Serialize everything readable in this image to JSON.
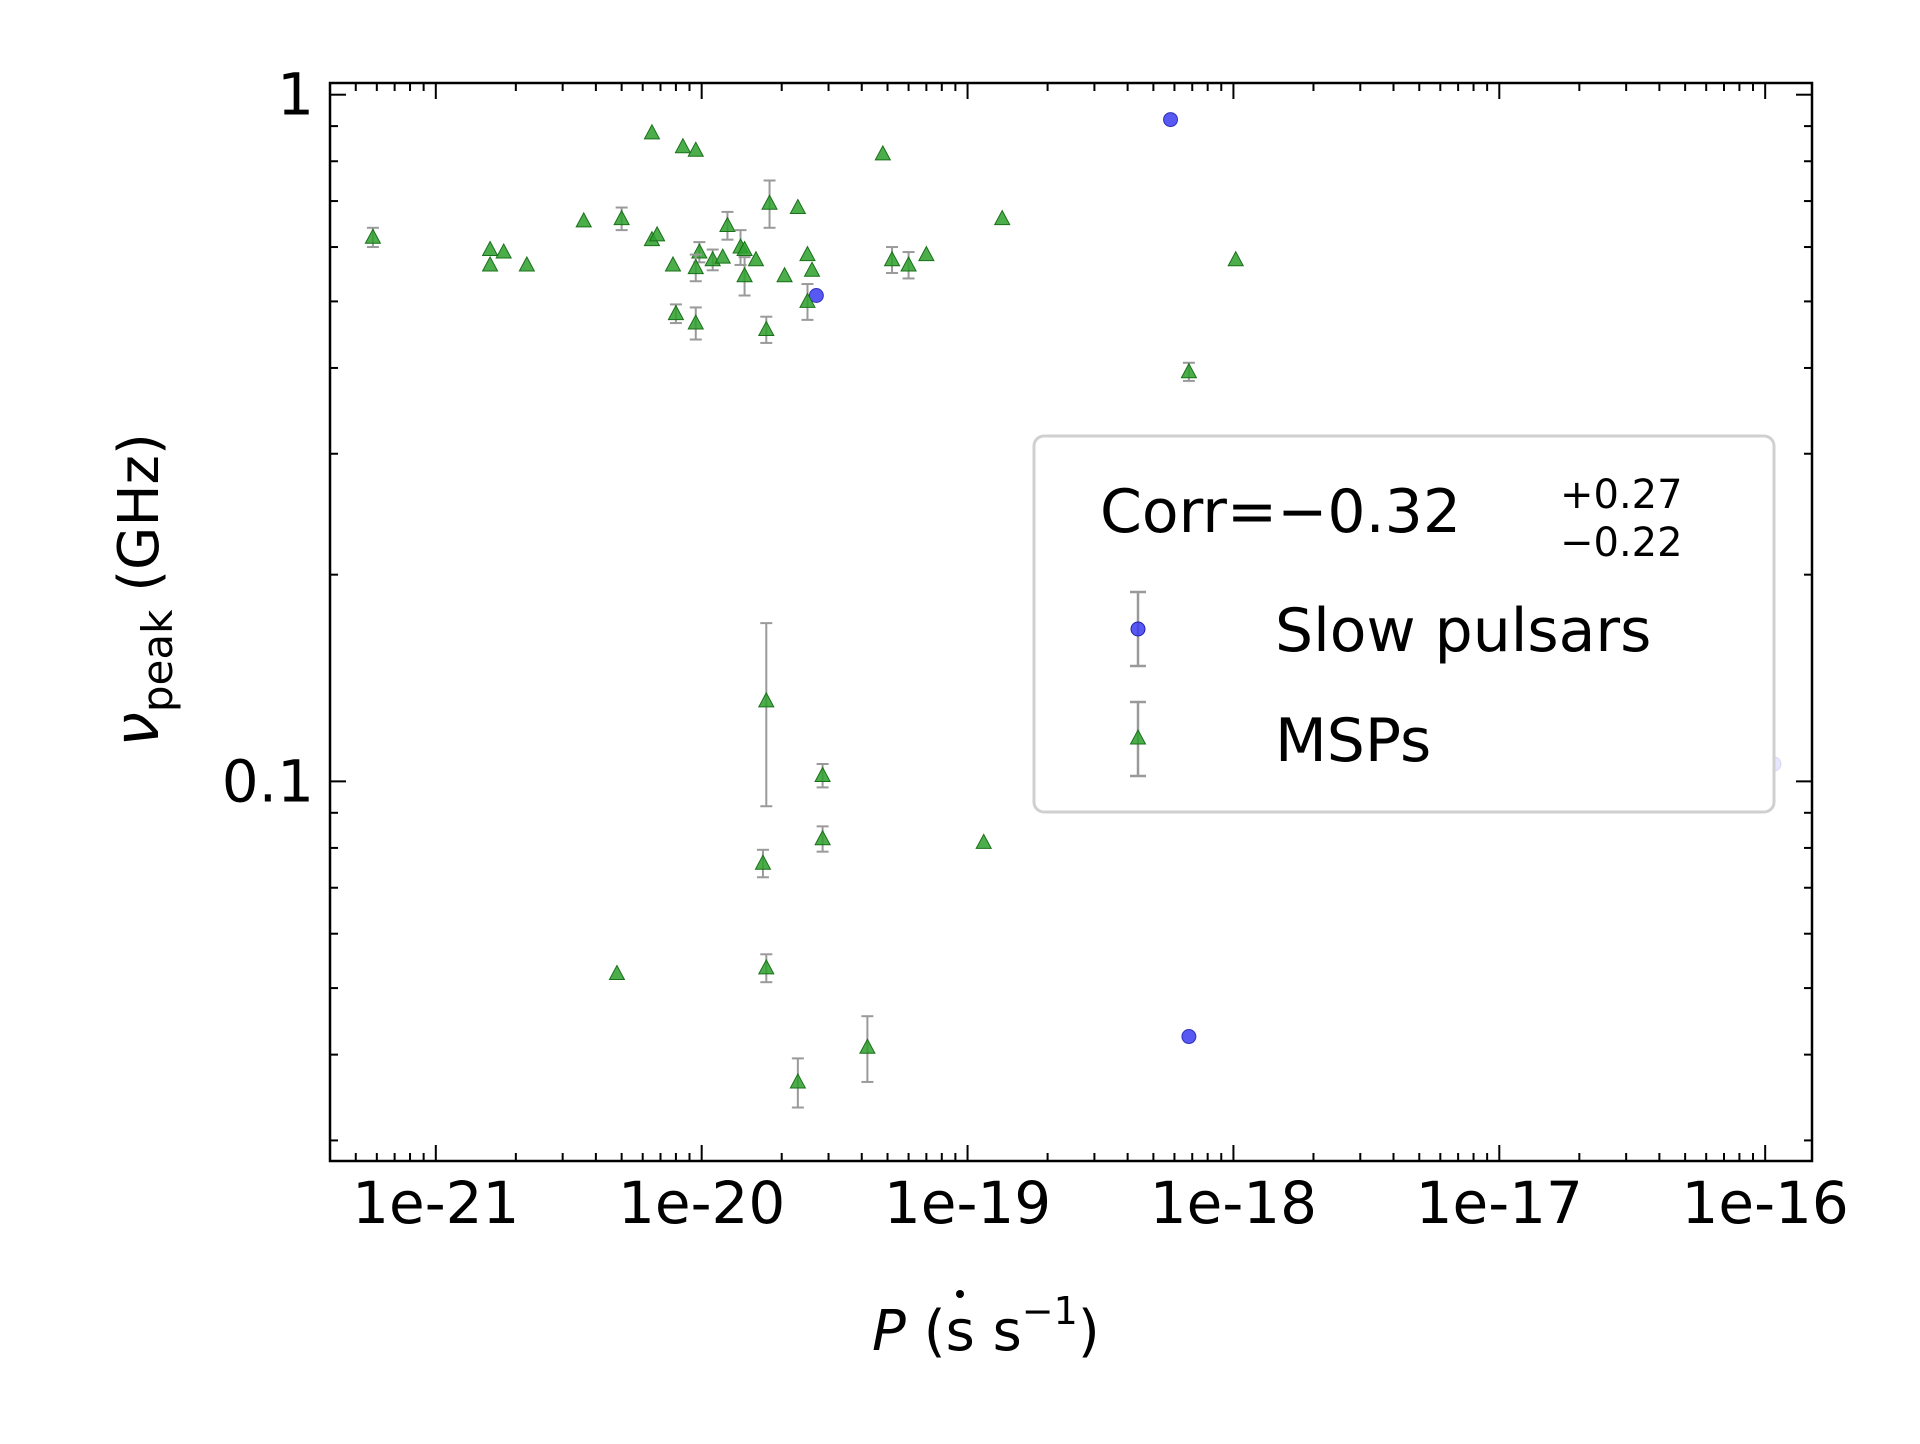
{
  "chart_data": {
    "type": "scatter",
    "x_scale": "log",
    "y_scale": "log",
    "xlabel_base": "P",
    "xlabel_units": "(s s",
    "xlabel_exp": "−1",
    "xlabel_close": ")",
    "ylabel_symbol": "ν",
    "ylabel_sub": "peak",
    "ylabel_units": " (GHz)",
    "xlim": [
      4e-22,
      1.5e-16
    ],
    "ylim": [
      0.028,
      1.04
    ],
    "x_ticks": [
      {
        "value": 1e-21,
        "label": "1e-21"
      },
      {
        "value": 1e-20,
        "label": "1e-20"
      },
      {
        "value": 1e-19,
        "label": "1e-19"
      },
      {
        "value": 1e-18,
        "label": "1e-18"
      },
      {
        "value": 1e-17,
        "label": "1e-17"
      },
      {
        "value": 1e-16,
        "label": "1e-16"
      }
    ],
    "y_ticks": [
      {
        "value": 1,
        "label": "1"
      },
      {
        "value": 0.1,
        "label": "0.1"
      }
    ],
    "legend": {
      "position": "center-right",
      "corr_text": "Corr=−0.32",
      "corr_upper": "+0.27",
      "corr_lower": "−0.22",
      "entries": [
        "Slow pulsars",
        "MSPs"
      ]
    },
    "colors": {
      "slow": "#3b3bf0",
      "msp": "#2ca02c",
      "error": "#9a9a9a"
    },
    "series": [
      {
        "name": "Slow pulsars",
        "marker": "circle",
        "points": [
          {
            "x": 5.8e-19,
            "y": 0.92
          },
          {
            "x": 2.7e-20,
            "y": 0.51
          },
          {
            "x": 6.8e-19,
            "y": 0.0425
          },
          {
            "x": 1.08e-16,
            "y": 0.106,
            "faded": true
          }
        ]
      },
      {
        "name": "MSPs",
        "marker": "triangle",
        "points": [
          {
            "x": 6.5e-21,
            "y": 0.88
          },
          {
            "x": 8.5e-21,
            "y": 0.84
          },
          {
            "x": 9.5e-21,
            "y": 0.83
          },
          {
            "x": 4.8e-20,
            "y": 0.82
          },
          {
            "x": 1.8e-20,
            "y": 0.695,
            "err": 0.055
          },
          {
            "x": 2.3e-20,
            "y": 0.685
          },
          {
            "x": 3.6e-21,
            "y": 0.655
          },
          {
            "x": 5e-21,
            "y": 0.66,
            "err": 0.025
          },
          {
            "x": 1.25e-20,
            "y": 0.645,
            "err": 0.03
          },
          {
            "x": 1.35e-19,
            "y": 0.66
          },
          {
            "x": 5.8e-22,
            "y": 0.62,
            "err": 0.02
          },
          {
            "x": 6.5e-21,
            "y": 0.615
          },
          {
            "x": 6.8e-21,
            "y": 0.625
          },
          {
            "x": 1.4e-20,
            "y": 0.6,
            "err": 0.035
          },
          {
            "x": 1.45e-20,
            "y": 0.595
          },
          {
            "x": 1.6e-21,
            "y": 0.595
          },
          {
            "x": 1.8e-21,
            "y": 0.59
          },
          {
            "x": 1.6e-21,
            "y": 0.565
          },
          {
            "x": 2.2e-21,
            "y": 0.565
          },
          {
            "x": 7.8e-21,
            "y": 0.565
          },
          {
            "x": 9.8e-21,
            "y": 0.59,
            "err": 0.02
          },
          {
            "x": 9.5e-21,
            "y": 0.56,
            "err": 0.025
          },
          {
            "x": 1.1e-20,
            "y": 0.575,
            "err": 0.02
          },
          {
            "x": 1.2e-20,
            "y": 0.58
          },
          {
            "x": 1.6e-20,
            "y": 0.575
          },
          {
            "x": 1.45e-20,
            "y": 0.545,
            "err": 0.035
          },
          {
            "x": 2.05e-20,
            "y": 0.545
          },
          {
            "x": 2.5e-20,
            "y": 0.585
          },
          {
            "x": 2.6e-20,
            "y": 0.555
          },
          {
            "x": 5.2e-20,
            "y": 0.575,
            "err": 0.025
          },
          {
            "x": 6e-20,
            "y": 0.565,
            "err": 0.025
          },
          {
            "x": 7e-20,
            "y": 0.585
          },
          {
            "x": 1.02e-18,
            "y": 0.575
          },
          {
            "x": 2.5e-20,
            "y": 0.5,
            "err": 0.03
          },
          {
            "x": 8e-21,
            "y": 0.48,
            "err": 0.015
          },
          {
            "x": 9.5e-21,
            "y": 0.465,
            "err": 0.025
          },
          {
            "x": 1.75e-20,
            "y": 0.455,
            "err": 0.02
          },
          {
            "x": 6.8e-19,
            "y": 0.395,
            "err": 0.012
          },
          {
            "x": 1.75e-20,
            "y": 0.131,
            "err": 0.039
          },
          {
            "x": 2.85e-20,
            "y": 0.102,
            "err": 0.004
          },
          {
            "x": 2.85e-20,
            "y": 0.0825,
            "err": 0.0035
          },
          {
            "x": 1.15e-19,
            "y": 0.0815
          },
          {
            "x": 1.7e-20,
            "y": 0.076,
            "err": 0.0035
          },
          {
            "x": 4.8e-21,
            "y": 0.0525
          },
          {
            "x": 1.75e-20,
            "y": 0.0535,
            "err": 0.0025
          },
          {
            "x": 4.2e-20,
            "y": 0.041,
            "err": 0.0045
          },
          {
            "x": 2.3e-20,
            "y": 0.0365,
            "err": 0.003
          }
        ]
      }
    ]
  }
}
